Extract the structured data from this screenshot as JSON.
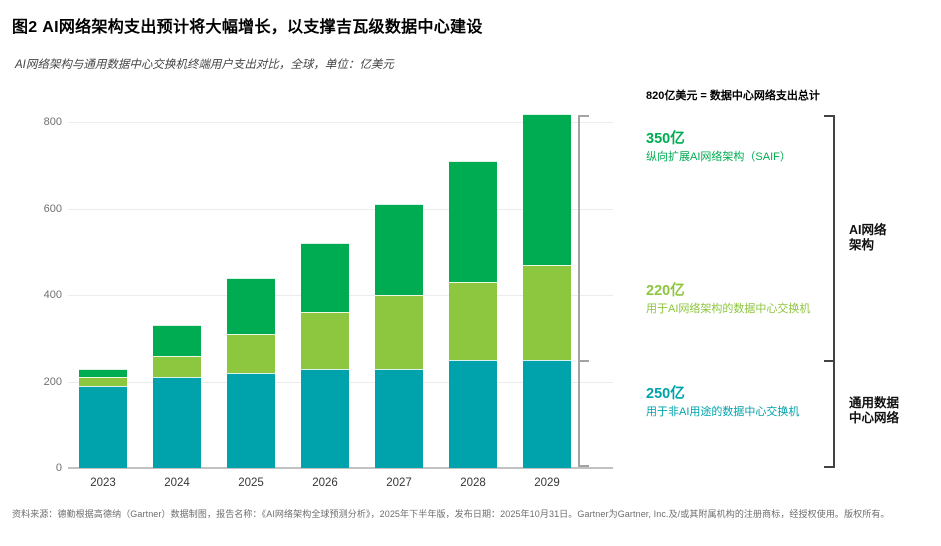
{
  "header": {
    "title": "图2 AI网络架构支出预计将大幅增长，以支撑吉瓦级数据中心建设",
    "subtitle": "AI网络架构与通用数据中心交换机终端用户支出对比，全球，单位：亿美元"
  },
  "chart_data": {
    "type": "bar",
    "stacked": true,
    "title": "AI网络架构与通用数据中心交换机终端用户支出对比",
    "unit": "亿美元",
    "categories": [
      "2023",
      "2024",
      "2025",
      "2026",
      "2027",
      "2028",
      "2029"
    ],
    "series": [
      {
        "name": "用于非AI用途的数据中心交换机",
        "color": "#00A3AC",
        "values": [
          190,
          210,
          220,
          230,
          230,
          250,
          250
        ]
      },
      {
        "name": "用于AI网络架构的数据中心交换机",
        "color": "#8DC63F",
        "values": [
          20,
          50,
          90,
          130,
          170,
          180,
          220
        ]
      },
      {
        "name": "纵向扩展AI网络架构（SAIF）",
        "color": "#00AC52",
        "values": [
          20,
          70,
          130,
          160,
          210,
          280,
          350
        ]
      }
    ],
    "totals": [
      230,
      330,
      440,
      520,
      610,
      710,
      820
    ],
    "yticks": [
      0,
      200,
      400,
      600,
      800
    ],
    "ylim": [
      0,
      860
    ],
    "xlabel": "",
    "ylabel": "亿美元",
    "grid": true,
    "legend_position": "right"
  },
  "annotation": {
    "total_note": "820亿美元 = 数据中心网络支出总计"
  },
  "legend": {
    "items": [
      {
        "value": "350亿",
        "label": "纵向扩展AI网络架构（SAIF）",
        "color": "#00AC52"
      },
      {
        "value": "220亿",
        "label": "用于AI网络架构的数据中心交换机",
        "color": "#8DC63F"
      },
      {
        "value": "250亿",
        "label": "用于非AI用途的数据中心交换机",
        "color": "#00A3AC"
      }
    ]
  },
  "brackets": {
    "ai_network_label": "AI网络\n架构",
    "general_dc_label": "通用数据\n中心网络"
  },
  "footer": {
    "source": "资料来源：德勤根据高德纳（Gartner）数据制图，报告名称：《AI网络架构全球预测分析》，2025年下半年版，发布日期：2025年10月31日。Gartner为Gartner, Inc.及/或其附属机构的注册商标，经授权使用。版权所有。"
  }
}
